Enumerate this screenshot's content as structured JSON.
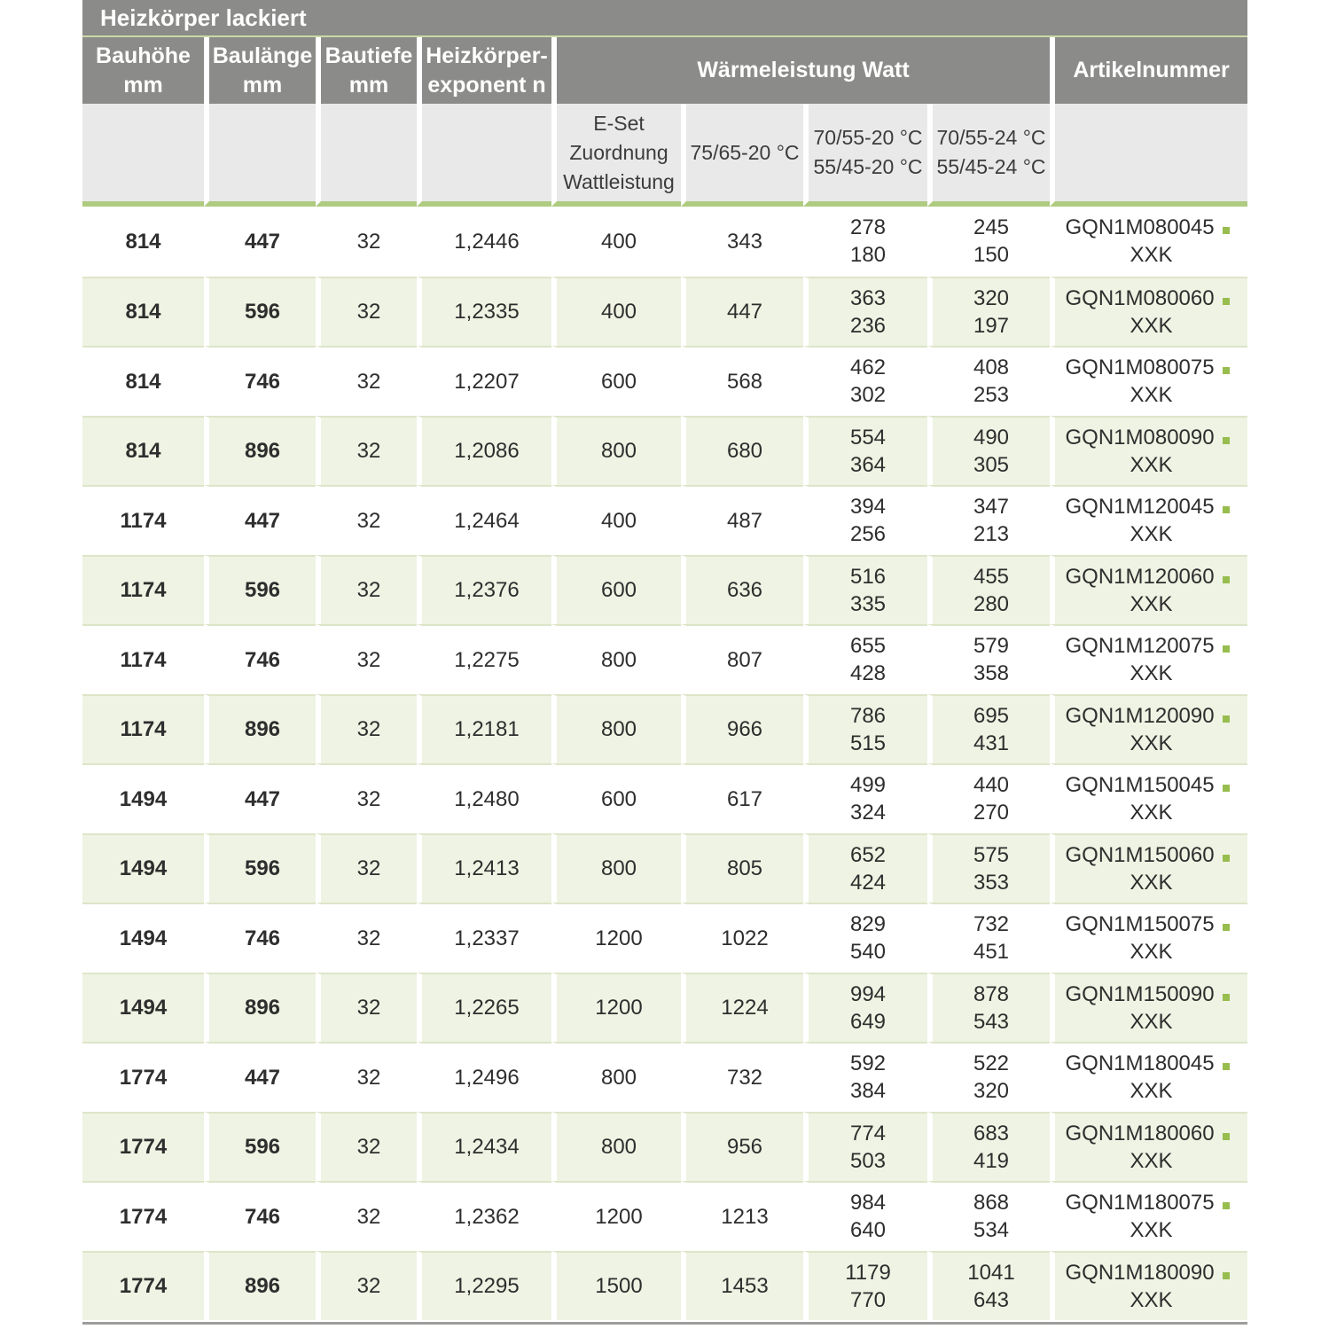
{
  "page": {
    "title": "Heizkörper lackiert"
  },
  "colors": {
    "header_gray": "#8b8b89",
    "subheader_gray": "#e9e9e9",
    "row_alt_green": "#eff3e3",
    "title_underline_green": "#cbd8a6",
    "thick_rule_green": "#aecb80",
    "row_separator_green": "#dde5c8",
    "article_dot_green": "#97bd4f",
    "bottom_rule_gray": "#9d9d9b",
    "header_text": "#ffffff",
    "body_text": "#2e2e2e"
  },
  "table": {
    "headers": {
      "col1": {
        "l1": "Bauhöhe",
        "l2": "mm"
      },
      "col2": {
        "l1": "Baulänge",
        "l2": "mm"
      },
      "col3": {
        "l1": "Bautiefe",
        "l2": "mm"
      },
      "col4": {
        "l1": "Heizkörper-",
        "l2": "exponent n"
      },
      "group": "Wärmeleistung Watt",
      "col9": "Artikelnummer"
    },
    "subheaders": {
      "eset": {
        "l1": "E-Set",
        "l2": "Zuordnung",
        "l3": "Wattleistung"
      },
      "t7565": "75/65-20 °C",
      "t7055_20": {
        "l1": "70/55-20 °C",
        "l2": "55/45-20 °C"
      },
      "t7055_24": {
        "l1": "70/55-24 °C",
        "l2": "55/45-24 °C"
      }
    },
    "rows": [
      {
        "bauhoehe": "814",
        "baulaenge": "447",
        "bautiefe": "32",
        "exponent": "1,2446",
        "eset": "400",
        "w7565": "343",
        "w20_high": "278",
        "w20_low": "180",
        "w24_high": "245",
        "w24_low": "150",
        "artikel": "GQN1M080045",
        "artikel_suffix": "XXK"
      },
      {
        "bauhoehe": "814",
        "baulaenge": "596",
        "bautiefe": "32",
        "exponent": "1,2335",
        "eset": "400",
        "w7565": "447",
        "w20_high": "363",
        "w20_low": "236",
        "w24_high": "320",
        "w24_low": "197",
        "artikel": "GQN1M080060",
        "artikel_suffix": "XXK"
      },
      {
        "bauhoehe": "814",
        "baulaenge": "746",
        "bautiefe": "32",
        "exponent": "1,2207",
        "eset": "600",
        "w7565": "568",
        "w20_high": "462",
        "w20_low": "302",
        "w24_high": "408",
        "w24_low": "253",
        "artikel": "GQN1M080075",
        "artikel_suffix": "XXK"
      },
      {
        "bauhoehe": "814",
        "baulaenge": "896",
        "bautiefe": "32",
        "exponent": "1,2086",
        "eset": "800",
        "w7565": "680",
        "w20_high": "554",
        "w20_low": "364",
        "w24_high": "490",
        "w24_low": "305",
        "artikel": "GQN1M080090",
        "artikel_suffix": "XXK"
      },
      {
        "bauhoehe": "1174",
        "baulaenge": "447",
        "bautiefe": "32",
        "exponent": "1,2464",
        "eset": "400",
        "w7565": "487",
        "w20_high": "394",
        "w20_low": "256",
        "w24_high": "347",
        "w24_low": "213",
        "artikel": "GQN1M120045",
        "artikel_suffix": "XXK"
      },
      {
        "bauhoehe": "1174",
        "baulaenge": "596",
        "bautiefe": "32",
        "exponent": "1,2376",
        "eset": "600",
        "w7565": "636",
        "w20_high": "516",
        "w20_low": "335",
        "w24_high": "455",
        "w24_low": "280",
        "artikel": "GQN1M120060",
        "artikel_suffix": "XXK"
      },
      {
        "bauhoehe": "1174",
        "baulaenge": "746",
        "bautiefe": "32",
        "exponent": "1,2275",
        "eset": "800",
        "w7565": "807",
        "w20_high": "655",
        "w20_low": "428",
        "w24_high": "579",
        "w24_low": "358",
        "artikel": "GQN1M120075",
        "artikel_suffix": "XXK"
      },
      {
        "bauhoehe": "1174",
        "baulaenge": "896",
        "bautiefe": "32",
        "exponent": "1,2181",
        "eset": "800",
        "w7565": "966",
        "w20_high": "786",
        "w20_low": "515",
        "w24_high": "695",
        "w24_low": "431",
        "artikel": "GQN1M120090",
        "artikel_suffix": "XXK"
      },
      {
        "bauhoehe": "1494",
        "baulaenge": "447",
        "bautiefe": "32",
        "exponent": "1,2480",
        "eset": "600",
        "w7565": "617",
        "w20_high": "499",
        "w20_low": "324",
        "w24_high": "440",
        "w24_low": "270",
        "artikel": "GQN1M150045",
        "artikel_suffix": "XXK"
      },
      {
        "bauhoehe": "1494",
        "baulaenge": "596",
        "bautiefe": "32",
        "exponent": "1,2413",
        "eset": "800",
        "w7565": "805",
        "w20_high": "652",
        "w20_low": "424",
        "w24_high": "575",
        "w24_low": "353",
        "artikel": "GQN1M150060",
        "artikel_suffix": "XXK"
      },
      {
        "bauhoehe": "1494",
        "baulaenge": "746",
        "bautiefe": "32",
        "exponent": "1,2337",
        "eset": "1200",
        "w7565": "1022",
        "w20_high": "829",
        "w20_low": "540",
        "w24_high": "732",
        "w24_low": "451",
        "artikel": "GQN1M150075",
        "artikel_suffix": "XXK"
      },
      {
        "bauhoehe": "1494",
        "baulaenge": "896",
        "bautiefe": "32",
        "exponent": "1,2265",
        "eset": "1200",
        "w7565": "1224",
        "w20_high": "994",
        "w20_low": "649",
        "w24_high": "878",
        "w24_low": "543",
        "artikel": "GQN1M150090",
        "artikel_suffix": "XXK"
      },
      {
        "bauhoehe": "1774",
        "baulaenge": "447",
        "bautiefe": "32",
        "exponent": "1,2496",
        "eset": "800",
        "w7565": "732",
        "w20_high": "592",
        "w20_low": "384",
        "w24_high": "522",
        "w24_low": "320",
        "artikel": "GQN1M180045",
        "artikel_suffix": "XXK"
      },
      {
        "bauhoehe": "1774",
        "baulaenge": "596",
        "bautiefe": "32",
        "exponent": "1,2434",
        "eset": "800",
        "w7565": "956",
        "w20_high": "774",
        "w20_low": "503",
        "w24_high": "683",
        "w24_low": "419",
        "artikel": "GQN1M180060",
        "artikel_suffix": "XXK"
      },
      {
        "bauhoehe": "1774",
        "baulaenge": "746",
        "bautiefe": "32",
        "exponent": "1,2362",
        "eset": "1200",
        "w7565": "1213",
        "w20_high": "984",
        "w20_low": "640",
        "w24_high": "868",
        "w24_low": "534",
        "artikel": "GQN1M180075",
        "artikel_suffix": "XXK"
      },
      {
        "bauhoehe": "1774",
        "baulaenge": "896",
        "bautiefe": "32",
        "exponent": "1,2295",
        "eset": "1500",
        "w7565": "1453",
        "w20_high": "1179",
        "w20_low": "770",
        "w24_high": "1041",
        "w24_low": "643",
        "artikel": "GQN1M180090",
        "artikel_suffix": "XXK"
      }
    ]
  }
}
